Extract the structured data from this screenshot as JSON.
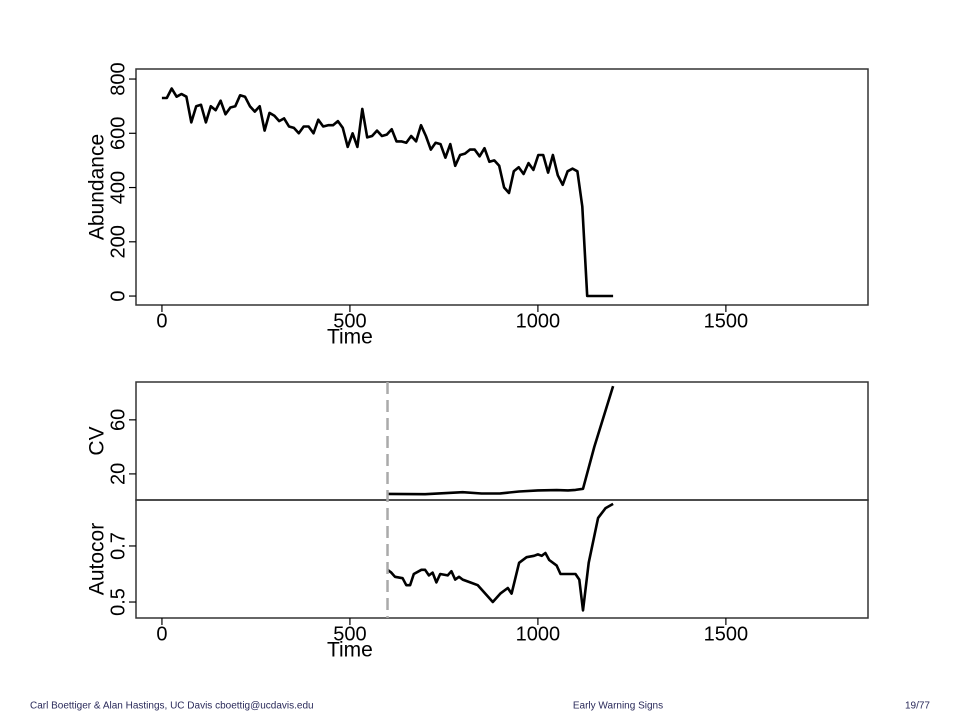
{
  "chart_data": [
    {
      "type": "line",
      "ylabel": "Abundance",
      "xlabel": "Time",
      "xlim": [
        -69,
        1878
      ],
      "ylim": [
        -33,
        837
      ],
      "xticks": [
        0,
        500,
        1000,
        1500
      ],
      "yticks": [
        0,
        200,
        400,
        600,
        800
      ],
      "series": [
        {
          "color": "#000000",
          "x": [
            0,
            13,
            26,
            39,
            52,
            65,
            78,
            91,
            104,
            117,
            130,
            143,
            156,
            169,
            182,
            195,
            208,
            221,
            234,
            247,
            260,
            273,
            286,
            299,
            312,
            325,
            338,
            351,
            364,
            377,
            390,
            403,
            416,
            429,
            442,
            455,
            468,
            481,
            494,
            507,
            520,
            533,
            546,
            559,
            572,
            585,
            598,
            611,
            624,
            637,
            650,
            663,
            676,
            689,
            702,
            715,
            728,
            741,
            754,
            767,
            780,
            793,
            806,
            819,
            832,
            845,
            858,
            871,
            884,
            897,
            910,
            923,
            936,
            949,
            962,
            975,
            988,
            1001,
            1014,
            1027,
            1040,
            1053,
            1066,
            1079,
            1092,
            1105,
            1118,
            1131,
            1200
          ],
          "values": [
            730,
            730,
            765,
            735,
            745,
            735,
            640,
            700,
            705,
            640,
            700,
            685,
            720,
            670,
            695,
            700,
            740,
            735,
            700,
            680,
            700,
            610,
            675,
            665,
            645,
            655,
            625,
            620,
            600,
            625,
            625,
            600,
            650,
            625,
            630,
            630,
            645,
            620,
            550,
            600,
            550,
            690,
            585,
            590,
            610,
            590,
            595,
            615,
            570,
            570,
            565,
            590,
            570,
            630,
            590,
            540,
            565,
            560,
            510,
            560,
            480,
            520,
            525,
            540,
            540,
            515,
            545,
            495,
            500,
            480,
            400,
            380,
            460,
            475,
            450,
            490,
            465,
            520,
            520,
            455,
            520,
            445,
            410,
            460,
            470,
            460,
            330,
            0,
            0
          ]
        }
      ]
    },
    {
      "type": "line",
      "ylabel": "CV",
      "xlim": [
        -69,
        1878
      ],
      "ylim": [
        0.7,
        88
      ],
      "yticks": [
        20,
        60
      ],
      "vline": 600,
      "series": [
        {
          "color": "#000000",
          "x": [
            600,
            700,
            800,
            850,
            900,
            950,
            1000,
            1050,
            1080,
            1100,
            1120,
            1150,
            1200
          ],
          "values": [
            5.2,
            5.0,
            6.5,
            5.5,
            5.6,
            7,
            7.8,
            8,
            7.8,
            8.2,
            9,
            40,
            85
          ]
        }
      ]
    },
    {
      "type": "line",
      "ylabel": "Autocor",
      "xlabel": "Time",
      "xlim": [
        -69,
        1878
      ],
      "ylim": [
        0.443,
        0.864
      ],
      "xticks": [
        0,
        500,
        1000,
        1500
      ],
      "yticks": [
        0.5,
        0.7
      ],
      "series": [
        {
          "color": "#000000",
          "x": [
            600,
            610,
            620,
            640,
            650,
            660,
            670,
            690,
            700,
            710,
            720,
            730,
            740,
            760,
            770,
            780,
            790,
            800,
            820,
            840,
            860,
            880,
            900,
            920,
            930,
            950,
            970,
            990,
            1000,
            1010,
            1020,
            1030,
            1050,
            1060,
            1070,
            1100,
            1110,
            1120,
            1135,
            1160,
            1180,
            1200
          ],
          "values": [
            0.615,
            0.605,
            0.59,
            0.585,
            0.56,
            0.56,
            0.6,
            0.615,
            0.615,
            0.595,
            0.605,
            0.57,
            0.6,
            0.595,
            0.61,
            0.58,
            0.59,
            0.58,
            0.57,
            0.56,
            0.53,
            0.5,
            0.53,
            0.55,
            0.53,
            0.64,
            0.66,
            0.665,
            0.67,
            0.665,
            0.675,
            0.65,
            0.63,
            0.6,
            0.6,
            0.6,
            0.58,
            0.47,
            0.64,
            0.8,
            0.835,
            0.85
          ]
        }
      ]
    }
  ],
  "footer": {
    "left": "Carl Boettiger & Alan Hastings, UC Davis cboettig@ucdavis.edu",
    "center": "Early Warning Signs",
    "right": "19/77"
  }
}
